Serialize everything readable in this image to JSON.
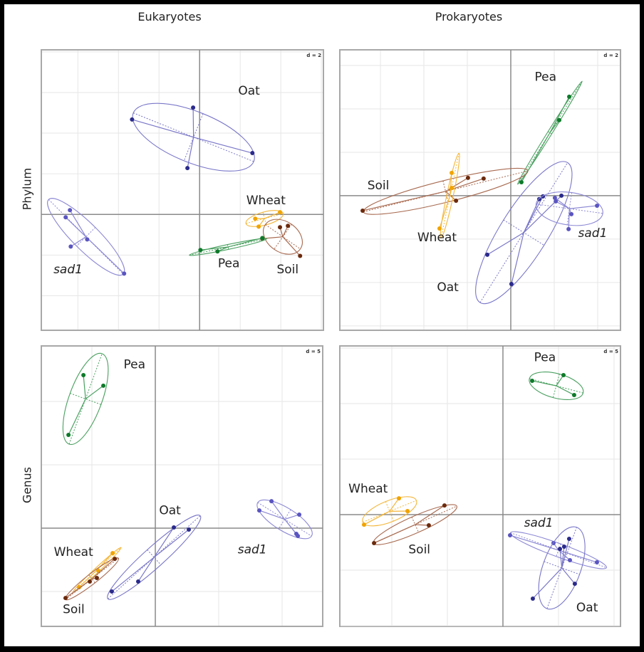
{
  "figure": {
    "column_titles": [
      "Eukaryotes",
      "Prokaryotes"
    ],
    "row_titles": [
      "Phylum",
      "Genus"
    ]
  },
  "colors": {
    "Oat": "#2b2a8c",
    "sad1": "#5a55c0",
    "Wheat": "#f0a400",
    "Soil": "#6b2a0c",
    "Pea": "#0e7a2a",
    "Oat_ellipse": "#7a77c8",
    "sad1_ellipse": "#8c88d4",
    "Wheat_ellipse": "#f4b63a",
    "Soil_ellipse": "#a86a50",
    "Pea_ellipse": "#4aa060"
  },
  "chart_data": [
    {
      "type": "scatter",
      "title": "Eukaryotes – Phylum",
      "grid_label": "d = 2",
      "grid_step": 2,
      "xlim": [
        -7.8,
        6.1
      ],
      "ylim": [
        -5.7,
        8.1
      ],
      "grid": true,
      "series": [
        {
          "name": "Oat",
          "label": "Oat",
          "italic": false,
          "label_pos": [
            1.9,
            5.9
          ],
          "points": [
            [
              -3.33,
              4.67
            ],
            [
              -0.32,
              5.26
            ],
            [
              2.6,
              3.02
            ],
            [
              -0.6,
              2.28
            ]
          ],
          "ellipse": {
            "cx": -0.3,
            "cy": 3.8,
            "rx": 3.2,
            "ry": 1.25,
            "angle": -22
          }
        },
        {
          "name": "sad1",
          "label": "sad1",
          "italic": true,
          "label_pos": [
            -7.2,
            -2.9
          ],
          "points": [
            [
              -6.39,
              0.21
            ],
            [
              -6.6,
              -0.14
            ],
            [
              -5.54,
              -1.23
            ],
            [
              -6.35,
              -1.58
            ],
            [
              -3.72,
              -2.91
            ]
          ],
          "ellipse": {
            "cx": -5.6,
            "cy": -1.1,
            "rx": 2.6,
            "ry": 0.65,
            "angle": -45
          }
        },
        {
          "name": "Wheat",
          "label": "Wheat",
          "italic": false,
          "label_pos": [
            2.3,
            0.5
          ],
          "points": [
            [
              3.96,
              0.11
            ],
            [
              2.74,
              -0.21
            ],
            [
              2.91,
              -0.6
            ]
          ],
          "ellipse": {
            "cx": 3.2,
            "cy": -0.2,
            "rx": 0.95,
            "ry": 0.32,
            "angle": 15
          }
        },
        {
          "name": "Soil",
          "label": "Soil",
          "italic": false,
          "label_pos": [
            3.8,
            -2.9
          ],
          "points": [
            [
              3.96,
              -0.63
            ],
            [
              4.35,
              -0.56
            ],
            [
              4.95,
              -2.04
            ],
            [
              3.09,
              -1.19
            ]
          ],
          "ellipse": {
            "cx": 4.1,
            "cy": -1.1,
            "rx": 1.05,
            "ry": 0.75,
            "angle": -35
          }
        },
        {
          "name": "Pea",
          "label": "Pea",
          "italic": false,
          "label_pos": [
            0.9,
            -2.6
          ],
          "points": [
            [
              0.04,
              -1.75
            ],
            [
              0.88,
              -1.82
            ],
            [
              3.09,
              -1.16
            ]
          ],
          "ellipse": {
            "cx": 1.4,
            "cy": -1.6,
            "rx": 1.95,
            "ry": 0.12,
            "angle": 12
          }
        }
      ]
    },
    {
      "type": "scatter",
      "title": "Prokaryotes – Phylum",
      "grid_label": "d = 2",
      "grid_step": 2,
      "xlim": [
        -7.87,
        5.05
      ],
      "ylim": [
        -6.2,
        6.72
      ],
      "grid": true,
      "series": [
        {
          "name": "Pea",
          "label": "Pea",
          "italic": false,
          "label_pos": [
            1.1,
            5.3
          ],
          "points": [
            [
              2.69,
              4.56
            ],
            [
              2.23,
              3.48
            ],
            [
              0.49,
              0.62
            ]
          ],
          "ellipse": {
            "cx": 1.8,
            "cy": 2.9,
            "rx": 2.8,
            "ry": 0.1,
            "angle": 58
          }
        },
        {
          "name": "Soil",
          "label": "Soil",
          "italic": false,
          "label_pos": [
            -6.6,
            0.3
          ],
          "points": [
            [
              -6.82,
              -0.69
            ],
            [
              -1.97,
              0.82
            ],
            [
              -1.25,
              0.79
            ],
            [
              -2.52,
              -0.23
            ]
          ],
          "ellipse": {
            "cx": -3.0,
            "cy": 0.2,
            "rx": 3.9,
            "ry": 0.5,
            "angle": 14
          }
        },
        {
          "name": "Wheat",
          "label": "Wheat",
          "italic": false,
          "label_pos": [
            -4.3,
            -2.1
          ],
          "points": [
            [
              -2.72,
              1.05
            ],
            [
              -2.72,
              0.36
            ],
            [
              -3.28,
              -1.51
            ]
          ],
          "ellipse": {
            "cx": -2.8,
            "cy": 0.0,
            "rx": 2.0,
            "ry": 0.15,
            "angle": 78
          }
        },
        {
          "name": "Oat",
          "label": "Oat",
          "italic": false,
          "label_pos": [
            -3.4,
            -4.4
          ],
          "points": [
            [
              1.48,
              -0.03
            ],
            [
              2.33,
              0.0
            ],
            [
              -1.08,
              -2.72
            ],
            [
              0.03,
              -4.07
            ],
            [
              1.31,
              -0.16
            ]
          ],
          "ellipse": {
            "cx": 0.6,
            "cy": -1.7,
            "rx": 3.8,
            "ry": 1.1,
            "angle": 58
          }
        },
        {
          "name": "sad1",
          "label": "sad1",
          "italic": true,
          "label_pos": [
            3.1,
            -1.9
          ],
          "points": [
            [
              2.07,
              -0.26
            ],
            [
              2.79,
              -0.85
            ],
            [
              3.97,
              -0.46
            ],
            [
              2.66,
              -1.54
            ],
            [
              2.03,
              -0.1
            ]
          ],
          "ellipse": {
            "cx": 2.7,
            "cy": -0.6,
            "rx": 1.55,
            "ry": 0.75,
            "angle": -8
          }
        }
      ]
    },
    {
      "type": "scatter",
      "title": "Eukaryotes – Genus",
      "grid_label": "d = 5",
      "grid_step": 5,
      "xlim": [
        -8.99,
        13.2
      ],
      "ylim": [
        -7.75,
        14.38
      ],
      "grid": true,
      "series": [
        {
          "name": "Pea",
          "label": "Pea",
          "italic": false,
          "label_pos": [
            -2.5,
            12.6
          ],
          "points": [
            [
              -5.67,
              12.08
            ],
            [
              -4.1,
              11.24
            ],
            [
              -6.85,
              7.36
            ]
          ],
          "ellipse": {
            "cx": -5.5,
            "cy": 10.2,
            "rx": 3.8,
            "ry": 1.3,
            "angle": 70
          }
        },
        {
          "name": "Oat",
          "label": "Oat",
          "italic": false,
          "label_pos": [
            0.3,
            1.1
          ],
          "points": [
            [
              1.46,
              0.06
            ],
            [
              2.64,
              -0.11
            ],
            [
              -1.35,
              -4.21
            ],
            [
              -3.43,
              -5.0
            ]
          ],
          "ellipse": {
            "cx": -0.1,
            "cy": -2.3,
            "rx": 4.9,
            "ry": 0.8,
            "angle": 42
          }
        },
        {
          "name": "sad1",
          "label": "sad1",
          "italic": true,
          "label_pos": [
            6.5,
            -2.0
          ],
          "points": [
            [
              9.16,
              2.13
            ],
            [
              8.2,
              1.4
            ],
            [
              11.35,
              1.07
            ],
            [
              11.12,
              -0.45
            ],
            [
              11.24,
              -0.62
            ]
          ],
          "ellipse": {
            "cx": 10.2,
            "cy": 0.7,
            "rx": 2.5,
            "ry": 0.9,
            "angle": -32
          }
        },
        {
          "name": "Wheat",
          "label": "Wheat",
          "italic": false,
          "label_pos": [
            -8.0,
            -2.2
          ],
          "points": [
            [
              -3.37,
              -1.97
            ],
            [
              -4.49,
              -3.37
            ],
            [
              -6.01,
              -4.66
            ]
          ],
          "ellipse": {
            "cx": -4.6,
            "cy": -3.3,
            "rx": 2.6,
            "ry": 0.18,
            "angle": 43
          }
        },
        {
          "name": "Soil",
          "label": "Soil",
          "italic": false,
          "label_pos": [
            -7.3,
            -6.7
          ],
          "points": [
            [
              -3.2,
              -2.42
            ],
            [
              -4.61,
              -3.93
            ],
            [
              -5.17,
              -4.21
            ],
            [
              -7.08,
              -5.51
            ]
          ],
          "ellipse": {
            "cx": -5.0,
            "cy": -4.0,
            "rx": 2.65,
            "ry": 0.4,
            "angle": 38
          }
        }
      ]
    },
    {
      "type": "scatter",
      "title": "Prokaryotes – Genus",
      "grid_label": "d = 5",
      "grid_step": 5,
      "xlim": [
        -14.68,
        10.58
      ],
      "ylim": [
        -10.06,
        15.19
      ],
      "grid": true,
      "series": [
        {
          "name": "Pea",
          "label": "Pea",
          "italic": false,
          "label_pos": [
            2.8,
            13.8
          ],
          "points": [
            [
              2.63,
              12.05
            ],
            [
              5.45,
              12.56
            ],
            [
              6.41,
              10.77
            ]
          ],
          "ellipse": {
            "cx": 4.8,
            "cy": 11.6,
            "rx": 2.5,
            "ry": 1.1,
            "angle": -15
          }
        },
        {
          "name": "Wheat",
          "label": "Wheat",
          "italic": false,
          "label_pos": [
            -13.9,
            2.0
          ],
          "points": [
            [
              -9.36,
              1.47
            ],
            [
              -8.59,
              0.32
            ],
            [
              -12.5,
              -0.9
            ]
          ],
          "ellipse": {
            "cx": -10.2,
            "cy": 0.3,
            "rx": 2.6,
            "ry": 0.95,
            "angle": 22
          }
        },
        {
          "name": "Soil",
          "label": "Soil",
          "italic": false,
          "label_pos": [
            -8.5,
            -3.5
          ],
          "points": [
            [
              -5.26,
              0.83
            ],
            [
              -6.67,
              -0.96
            ],
            [
              -11.6,
              -2.56
            ]
          ],
          "ellipse": {
            "cx": -7.9,
            "cy": -0.9,
            "rx": 4.1,
            "ry": 0.75,
            "angle": 24
          }
        },
        {
          "name": "sad1",
          "label": "sad1",
          "italic": true,
          "label_pos": [
            1.9,
            -1.1
          ],
          "points": [
            [
              0.64,
              -1.86
            ],
            [
              4.55,
              -2.56
            ],
            [
              8.46,
              -4.29
            ],
            [
              6.03,
              -4.1
            ]
          ],
          "ellipse": {
            "cx": 5.0,
            "cy": -3.2,
            "rx": 4.6,
            "ry": 0.6,
            "angle": -20
          }
        },
        {
          "name": "Oat",
          "label": "Oat",
          "italic": false,
          "label_pos": [
            6.6,
            -8.7
          ],
          "points": [
            [
              5.96,
              -2.18
            ],
            [
              5.13,
              -3.08
            ],
            [
              6.47,
              -6.22
            ],
            [
              2.69,
              -7.56
            ],
            [
              5.51,
              -2.88
            ]
          ],
          "ellipse": {
            "cx": 5.3,
            "cy": -4.8,
            "rx": 3.9,
            "ry": 1.7,
            "angle": 70
          }
        }
      ]
    }
  ]
}
